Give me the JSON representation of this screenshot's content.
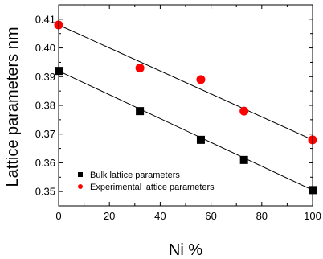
{
  "chart_data": {
    "type": "scatter",
    "title": "",
    "xlabel": "Ni %",
    "ylabel": "Lattice parameters nm",
    "xlim": [
      0,
      100
    ],
    "ylim": [
      0.345,
      0.415
    ],
    "x_ticks": [
      0,
      20,
      40,
      60,
      80,
      100
    ],
    "y_ticks": [
      0.35,
      0.36,
      0.37,
      0.38,
      0.39,
      0.4,
      0.41
    ],
    "x_tick_labels": [
      "0",
      "20",
      "40",
      "60",
      "80",
      "100"
    ],
    "y_tick_labels": [
      "0.35",
      "0.36",
      "0.37",
      "0.38",
      "0.39",
      "0.40",
      "0.41"
    ],
    "grid": false,
    "legend_position": "bottom-left",
    "series": [
      {
        "name": "Bulk lattice parameters",
        "marker": "square",
        "color": "#000000",
        "x": [
          0,
          32,
          56,
          73,
          100
        ],
        "y": [
          0.392,
          0.378,
          0.368,
          0.361,
          0.3505
        ],
        "fit_line": {
          "x": [
            0,
            100
          ],
          "y": [
            0.392,
            0.3505
          ]
        }
      },
      {
        "name": "Experimental lattice parameters",
        "marker": "circle",
        "color": "#ff0000",
        "x": [
          0,
          32,
          56,
          73,
          100
        ],
        "y": [
          0.408,
          0.393,
          0.389,
          0.378,
          0.368
        ],
        "fit_line": {
          "x": [
            0,
            100
          ],
          "y": [
            0.408,
            0.368
          ]
        }
      }
    ]
  }
}
